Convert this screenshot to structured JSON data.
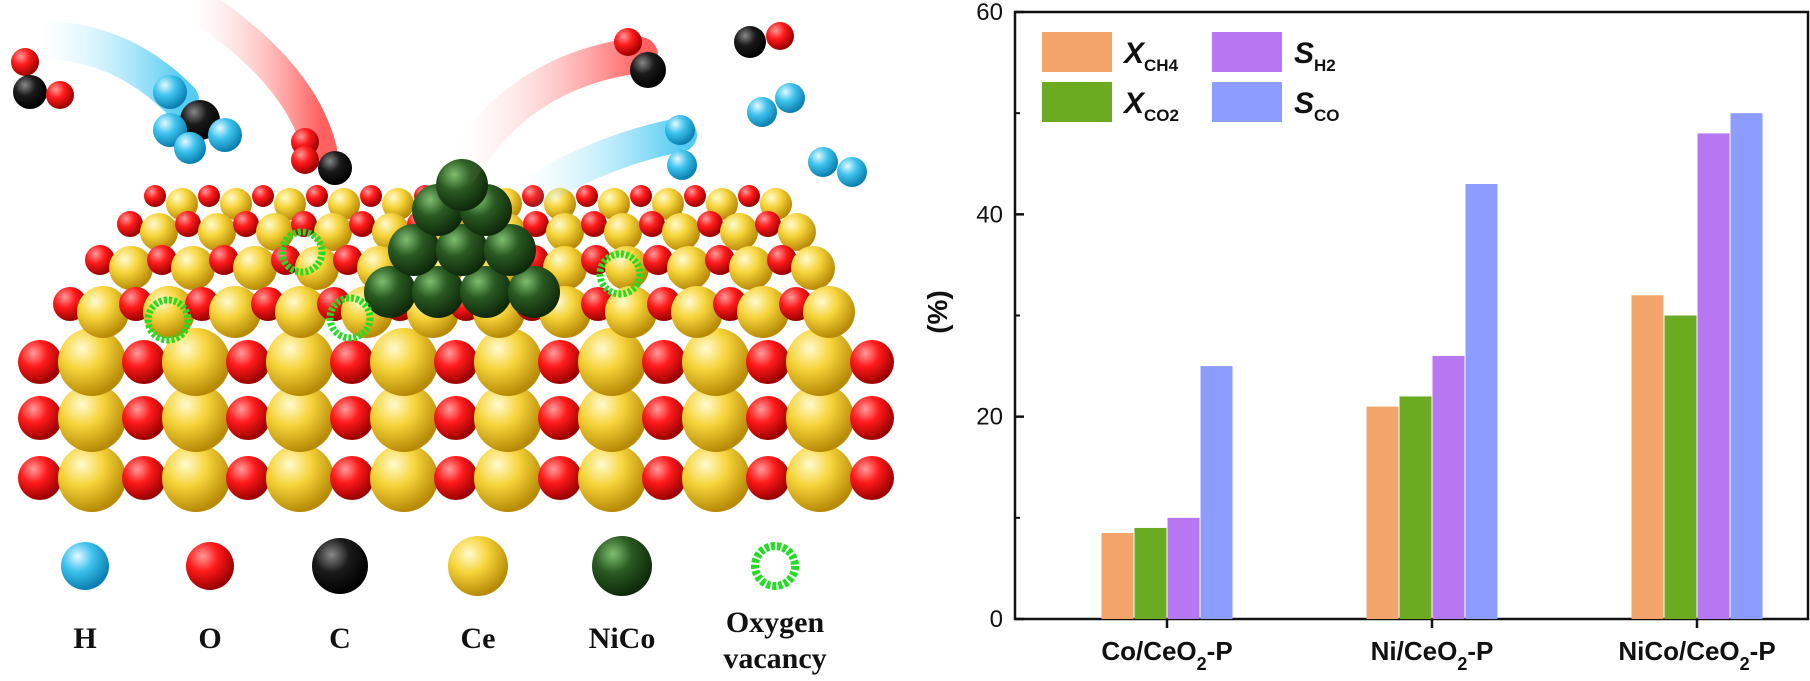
{
  "illustration": {
    "legend": [
      {
        "label": "H",
        "icon": "h-atom-icon",
        "color": "#3ec3ee"
      },
      {
        "label": "O",
        "icon": "o-atom-icon",
        "color": "#ff1a1a"
      },
      {
        "label": "C",
        "icon": "c-atom-icon",
        "color": "#111111"
      },
      {
        "label": "Ce",
        "icon": "ce-atom-icon",
        "color": "#f2cf2a"
      },
      {
        "label": "NiCo",
        "icon": "nico-atom-icon",
        "color": "#2a5a22"
      },
      {
        "label": "Oxygen",
        "label2": "vacancy",
        "icon": "oxygen-vacancy-ring-icon",
        "color": "#22dd22"
      }
    ]
  },
  "chart_data": {
    "type": "bar",
    "categories": [
      "Co/CeO2-P",
      "Ni/CeO2-P",
      "NiCo/CeO2-P"
    ],
    "category_parts": [
      {
        "pre": "Co/CeO",
        "sub": "2",
        "post": "-P"
      },
      {
        "pre": "Ni/CeO",
        "sub": "2",
        "post": "-P"
      },
      {
        "pre": "NiCo/CeO",
        "sub": "2",
        "post": "-P"
      }
    ],
    "series": [
      {
        "name": "XCH4",
        "main": "X",
        "sub": "CH4",
        "color": "#f2a46b",
        "values": [
          8.5,
          21,
          32
        ]
      },
      {
        "name": "XCO2",
        "main": "X",
        "sub": "CO2",
        "color": "#6bab22",
        "values": [
          9,
          22,
          30
        ]
      },
      {
        "name": "SH2",
        "main": "S",
        "sub": "H2",
        "color": "#b877f2",
        "values": [
          10,
          26,
          48
        ]
      },
      {
        "name": "SCO",
        "main": "S",
        "sub": "CO",
        "color": "#8d9cff",
        "values": [
          25,
          43,
          50
        ]
      }
    ],
    "ylabel": "(%)",
    "ylim": [
      0,
      60
    ],
    "yticks": [
      0,
      20,
      40,
      60
    ],
    "legend_position": "top-left",
    "grid": false
  }
}
